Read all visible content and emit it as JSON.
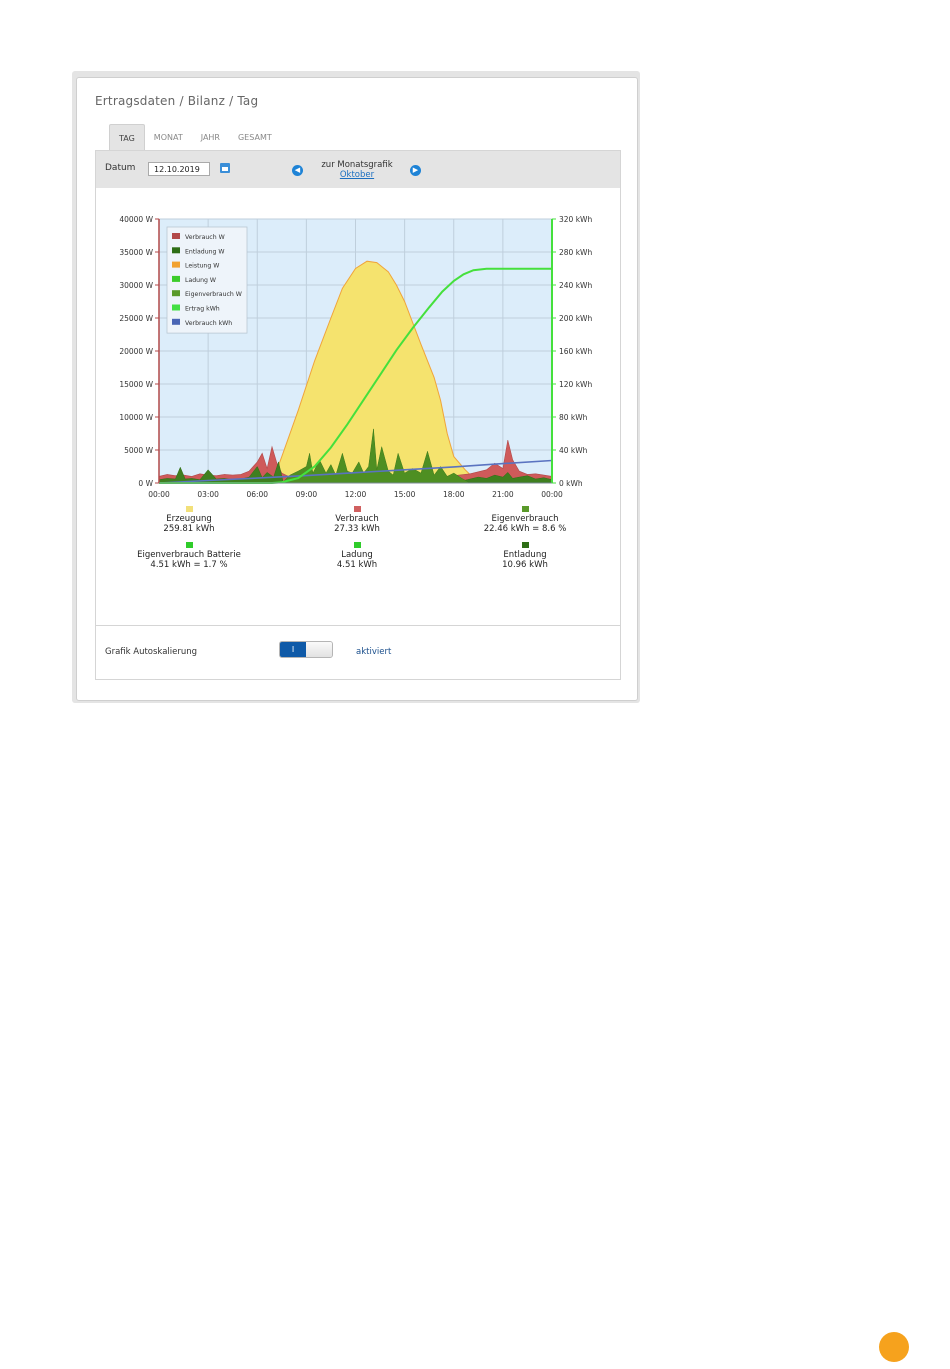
{
  "breadcrumb": "Ertragsdaten / Bilanz / Tag",
  "tabs": [
    {
      "label": "TAG",
      "active": true
    },
    {
      "label": "MONAT",
      "active": false
    },
    {
      "label": "JAHR",
      "active": false
    },
    {
      "label": "GESAMT",
      "active": false
    }
  ],
  "datebar": {
    "date_label": "Datum",
    "date_value": "12.10.2019",
    "month_text": "zur Monatsgrafik",
    "month_link": "Oktober",
    "prev_icon": "chevron-left-icon",
    "next_icon": "chevron-right-icon",
    "calendar_icon": "calendar-icon"
  },
  "chart_data": {
    "type": "area",
    "x_ticks": [
      "00:00",
      "03:00",
      "06:00",
      "09:00",
      "12:00",
      "15:00",
      "18:00",
      "21:00",
      "00:00"
    ],
    "y_left_ticks": [
      "0 W",
      "5000 W",
      "10000 W",
      "15000 W",
      "20000 W",
      "25000 W",
      "30000 W",
      "35000 W",
      "40000 W"
    ],
    "y_right_ticks": [
      "0 kWh",
      "40 kWh",
      "80 kWh",
      "120 kWh",
      "160 kWh",
      "200 kWh",
      "240 kWh",
      "280 kWh",
      "320 kWh"
    ],
    "ylim_left": [
      0,
      40000
    ],
    "ylim_right": [
      0,
      320
    ],
    "xlim_hours": [
      0,
      24
    ],
    "legend_placement": "top-left",
    "legend": [
      {
        "name": "Verbrauch W",
        "color": "#b24949"
      },
      {
        "name": "Entladung W",
        "color": "#2e6e16"
      },
      {
        "name": "Leistung W",
        "color": "#f2a230"
      },
      {
        "name": "Ladung W",
        "color": "#3ccc2a"
      },
      {
        "name": "Eigenverbrauch W",
        "color": "#5a9a2a"
      },
      {
        "name": "Ertrag kWh",
        "color": "#44e044"
      },
      {
        "name": "Verbrauch kWh",
        "color": "#4a66b5"
      }
    ],
    "series": {
      "leistung_w": {
        "x": [
          0,
          6.9,
          7.5,
          8.5,
          9.5,
          10.5,
          11.2,
          12,
          12.7,
          13.3,
          14,
          14.5,
          15,
          16,
          16.8,
          17.2,
          17.6,
          18,
          18.7,
          19.4,
          20,
          24
        ],
        "y": [
          0,
          0,
          4000,
          11000,
          18500,
          25000,
          29500,
          32500,
          33600,
          33400,
          32000,
          30000,
          27500,
          21000,
          16000,
          12500,
          7500,
          4000,
          2000,
          300,
          0,
          0
        ]
      },
      "verbrauch_w": {
        "x": [
          0,
          0.5,
          1,
          1.5,
          2,
          2.5,
          3,
          3.5,
          4,
          4.5,
          5,
          5.5,
          6,
          6.3,
          6.6,
          6.9,
          7.2,
          7.5,
          8,
          9,
          10,
          11,
          12,
          13,
          14,
          15,
          16,
          17,
          18,
          19,
          20,
          20.5,
          21,
          21.3,
          21.6,
          22,
          22.5,
          23,
          23.5,
          24
        ],
        "y": [
          1000,
          1300,
          1100,
          1200,
          1000,
          1400,
          1200,
          1100,
          1300,
          1200,
          1300,
          1800,
          3200,
          4500,
          2200,
          5500,
          3000,
          1500,
          900,
          800,
          900,
          1000,
          800,
          900,
          1000,
          1100,
          1000,
          900,
          1100,
          1400,
          2000,
          3000,
          2200,
          6500,
          3500,
          1800,
          1300,
          1400,
          1200,
          1000
        ]
      },
      "entladung_w": {
        "x": [
          0,
          0.5,
          1,
          1.3,
          1.6,
          2,
          2.5,
          3,
          3.5,
          4,
          4.5,
          5,
          5.5,
          6,
          6.3,
          6.6,
          7,
          7.3,
          7.6,
          18,
          19,
          19.5,
          20,
          20.5,
          21,
          21.3,
          21.6,
          22,
          22.5,
          23,
          23.5,
          24
        ],
        "y": [
          500,
          700,
          600,
          2400,
          600,
          700,
          500,
          2000,
          600,
          700,
          500,
          600,
          900,
          2500,
          800,
          1600,
          900,
          3200,
          0,
          0,
          600,
          900,
          700,
          1200,
          900,
          1600,
          700,
          900,
          1100,
          600,
          800,
          500
        ]
      },
      "eigenverbrauch_w": {
        "x": [
          7.5,
          8,
          8.5,
          9,
          9.2,
          9.4,
          9.8,
          10.2,
          10.5,
          10.8,
          11.2,
          11.5,
          11.8,
          12.2,
          12.5,
          12.8,
          13.1,
          13.3,
          13.6,
          14,
          14.3,
          14.6,
          15,
          15.5,
          16,
          16.4,
          16.8,
          17.2,
          17.6,
          18,
          18.5,
          19
        ],
        "y": [
          0,
          1200,
          1800,
          2500,
          4500,
          1500,
          3500,
          1500,
          2800,
          1200,
          4500,
          1800,
          1500,
          3200,
          1500,
          2500,
          8200,
          2000,
          5500,
          1800,
          1200,
          4500,
          1500,
          2200,
          1500,
          4800,
          1200,
          2500,
          1000,
          1500,
          700,
          0
        ]
      },
      "ertrag_kwh": {
        "x": [
          0,
          6.9,
          7.5,
          8.5,
          9.5,
          10.5,
          11.5,
          12.5,
          13.5,
          14.5,
          15.5,
          16.5,
          17.3,
          18,
          18.6,
          19.2,
          20,
          24
        ],
        "y": [
          0,
          0,
          1,
          6,
          20,
          43,
          71,
          101,
          131,
          161,
          188,
          213,
          232,
          245,
          253,
          258,
          259.8,
          259.8
        ]
      },
      "verbrauch_kwh": {
        "x": [
          0,
          3,
          6,
          9,
          12,
          15,
          18,
          21,
          24
        ],
        "y": [
          0,
          3,
          6,
          9,
          12.5,
          16,
          19.5,
          23.5,
          27.3
        ]
      }
    }
  },
  "stats": [
    {
      "label": "Erzeugung",
      "value": "259.81 kWh",
      "color": "#f2e07a"
    },
    {
      "label": "Verbrauch",
      "value": "27.33 kWh",
      "color": "#d06060"
    },
    {
      "label": "Eigenverbrauch",
      "value": "22.46 kWh = 8.6 %",
      "color": "#5a9a2a"
    },
    {
      "label": "Eigenverbrauch Batterie",
      "value": "4.51 kWh = 1.7 %",
      "color": "#2fcc2a"
    },
    {
      "label": "Ladung",
      "value": "4.51 kWh",
      "color": "#2fcc2a"
    },
    {
      "label": "Entladung",
      "value": "10.96 kWh",
      "color": "#2e6e16"
    }
  ],
  "autoscale": {
    "label": "Grafik Autoskalierung",
    "toggle_on_label": "I",
    "status": "aktiviert"
  }
}
